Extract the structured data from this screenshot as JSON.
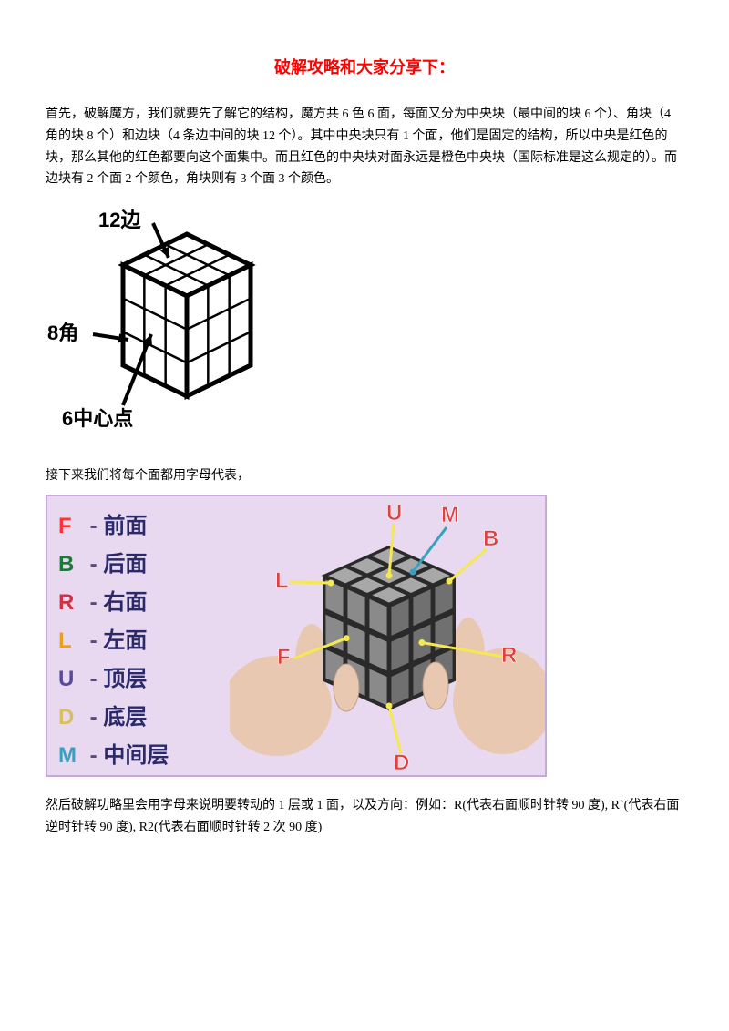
{
  "title": {
    "text": "破解攻略和大家分享下：",
    "color": "#ff0000"
  },
  "para1": "首先，破解魔方，我们就要先了解它的结构，魔方共 6 色 6 面，每面又分为中央块（最中间的块 6 个）、角块（4 角的块 8 个）和边块（4 条边中间的块 12 个）。其中中央块只有 1 个面，他们是固定的结构，所以中央是红色的块，那么其他的红色都要向这个面集中。而且红色的中央块对面永远是橙色中央块（国际标准是这么规定的）。而边块有 2 个面 2 个颜色，角块则有 3 个面 3 个颜色。",
  "para2": "接下来我们将每个面都用字母代表，",
  "para3": "然后破解功略里会用字母来说明要转动的 1 层或 1 面，以及方向：例如：R(代表右面顺时针转 90 度), R`(代表右面逆时针转 90 度), R2(代表右面顺时针转 2 次 90 度)",
  "diagram1": {
    "labels": {
      "edges": "12边",
      "corners": "8角",
      "centers": "6中心点"
    },
    "stroke": "#000000",
    "fill": "#ffffff",
    "fontsize": 22
  },
  "diagram2": {
    "border_color": "#c8a8d8",
    "background": "#e8d8f0",
    "legend_sep_color": "#5b4a8a",
    "legend_cn_color": "#2a2a6a",
    "faces": [
      {
        "letter": "F",
        "color": "#ff3333",
        "label": "前面"
      },
      {
        "letter": "B",
        "color": "#1a7a3a",
        "label": "后面"
      },
      {
        "letter": "R",
        "color": "#cc3344",
        "label": "右面"
      },
      {
        "letter": "L",
        "color": "#e8a020",
        "label": "左面"
      },
      {
        "letter": "U",
        "color": "#5a4a9a",
        "label": "顶层"
      },
      {
        "letter": "D",
        "color": "#d8c060",
        "label": "底层"
      },
      {
        "letter": "M",
        "color": "#3aa0c0",
        "label": "中间层"
      }
    ],
    "cube_label_color": "#e04040",
    "pointer_stroke": "#f5e850",
    "m_pointer_stroke": "#3aa0c0",
    "cube_fill": "#8a8a8a",
    "cube_edge": "#2a2a2a",
    "hand_fill": "#e8c8b0"
  }
}
